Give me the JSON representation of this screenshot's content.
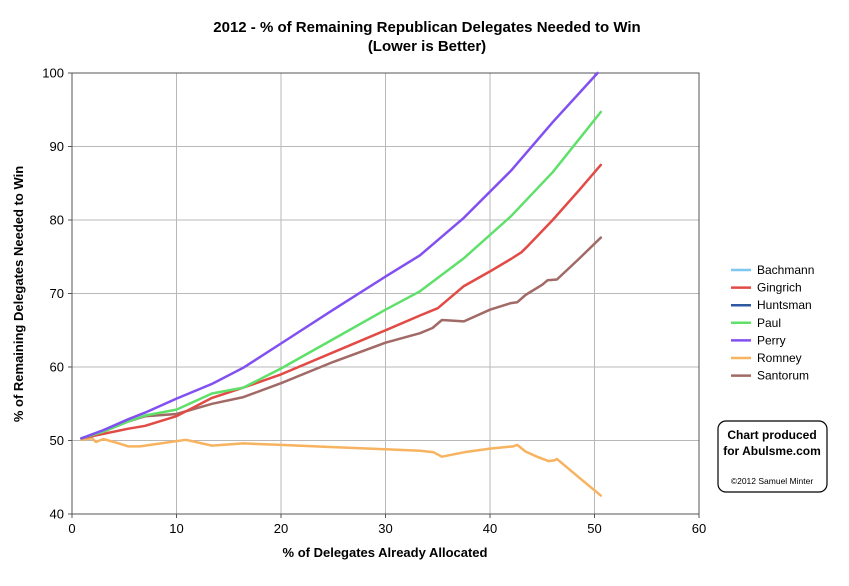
{
  "chart_data": {
    "type": "line",
    "title": "2012 - % of Remaining Republican Delegates Needed to Win",
    "subtitle": "(Lower is Better)",
    "xlabel": "% of Delegates Already Allocated",
    "ylabel": "% of Remaining Delegates Needed to Win",
    "xlim": [
      0,
      60
    ],
    "ylim": [
      40,
      100
    ],
    "x_ticks": [
      0,
      10,
      20,
      30,
      40,
      50,
      60
    ],
    "y_ticks": [
      40,
      50,
      60,
      70,
      80,
      90,
      100
    ],
    "grid": "horizontal and vertical",
    "legend_position": "right",
    "series": [
      {
        "name": "Bachmann",
        "color": "#7ec8f0",
        "x": [
          0.9,
          2.0
        ],
        "y": [
          50.3,
          50.6
        ]
      },
      {
        "name": "Gingrich",
        "color": "#e24a46",
        "x": [
          0.9,
          3.0,
          5.4,
          7.0,
          10.0,
          13.4,
          16.4,
          20.0,
          25.0,
          30.0,
          33.3,
          35.0,
          37.5,
          40.0,
          42.0,
          43.0,
          43.5,
          46.0,
          48.5,
          50.6
        ],
        "y": [
          50.3,
          50.9,
          51.6,
          52.0,
          53.3,
          55.8,
          57.2,
          59.0,
          62.0,
          65.0,
          67.0,
          68.0,
          71.0,
          73.0,
          74.7,
          75.6,
          76.3,
          80.0,
          84.0,
          87.5
        ]
      },
      {
        "name": "Huntsman",
        "color": "#2c5aa0",
        "x": [
          0.9,
          2.0
        ],
        "y": [
          50.3,
          50.6
        ]
      },
      {
        "name": "Paul",
        "color": "#5fe06a",
        "x": [
          0.9,
          3.0,
          5.4,
          7.0,
          10.0,
          13.4,
          16.4,
          20.0,
          25.0,
          30.0,
          33.3,
          37.5,
          42.0,
          46.0,
          50.6
        ],
        "y": [
          50.3,
          51.2,
          52.6,
          53.4,
          54.2,
          56.4,
          57.2,
          59.8,
          63.8,
          67.8,
          70.3,
          74.8,
          80.5,
          86.5,
          94.7
        ]
      },
      {
        "name": "Perry",
        "color": "#8250f0",
        "x": [
          0.9,
          3.0,
          5.4,
          7.0,
          10.0,
          13.4,
          16.4,
          20.0,
          25.0,
          30.0,
          33.3,
          37.5,
          42.0,
          46.0,
          50.3
        ],
        "y": [
          50.3,
          51.4,
          52.9,
          53.8,
          55.7,
          57.7,
          59.9,
          63.2,
          67.8,
          72.3,
          75.2,
          80.3,
          86.7,
          93.3,
          100.0
        ]
      },
      {
        "name": "Romney",
        "color": "#f7b360",
        "x": [
          0.9,
          1.9,
          2.3,
          3.0,
          4.5,
          5.4,
          6.5,
          8.5,
          10.9,
          13.4,
          16.4,
          20.0,
          25.0,
          30.0,
          33.3,
          34.6,
          35.4,
          37.5,
          40.0,
          42.2,
          42.6,
          43.4,
          44.5,
          45.6,
          46.2,
          46.4,
          48.5,
          50.6
        ],
        "y": [
          50.1,
          50.3,
          49.8,
          50.2,
          49.6,
          49.2,
          49.2,
          49.6,
          50.1,
          49.3,
          49.6,
          49.4,
          49.1,
          48.8,
          48.6,
          48.4,
          47.8,
          48.4,
          48.9,
          49.2,
          49.4,
          48.5,
          47.8,
          47.2,
          47.3,
          47.5,
          45.0,
          42.5
        ]
      },
      {
        "name": "Santorum",
        "color": "#a16a66",
        "x": [
          0.9,
          3.0,
          5.4,
          7.0,
          10.0,
          13.4,
          16.4,
          20.0,
          25.0,
          30.0,
          33.3,
          34.5,
          35.4,
          37.5,
          40.0,
          42.0,
          42.6,
          43.4,
          45.0,
          45.5,
          46.4,
          48.5,
          50.6
        ],
        "y": [
          50.3,
          51.2,
          52.6,
          53.3,
          53.6,
          55.0,
          55.9,
          57.8,
          60.7,
          63.3,
          64.6,
          65.3,
          66.4,
          66.2,
          67.8,
          68.7,
          68.8,
          69.8,
          71.2,
          71.8,
          71.9,
          74.7,
          77.6
        ]
      }
    ]
  },
  "credit_box": {
    "line1": "Chart produced",
    "line2": "for Abulsme.com",
    "copyright": "©2012 Samuel Minter"
  }
}
